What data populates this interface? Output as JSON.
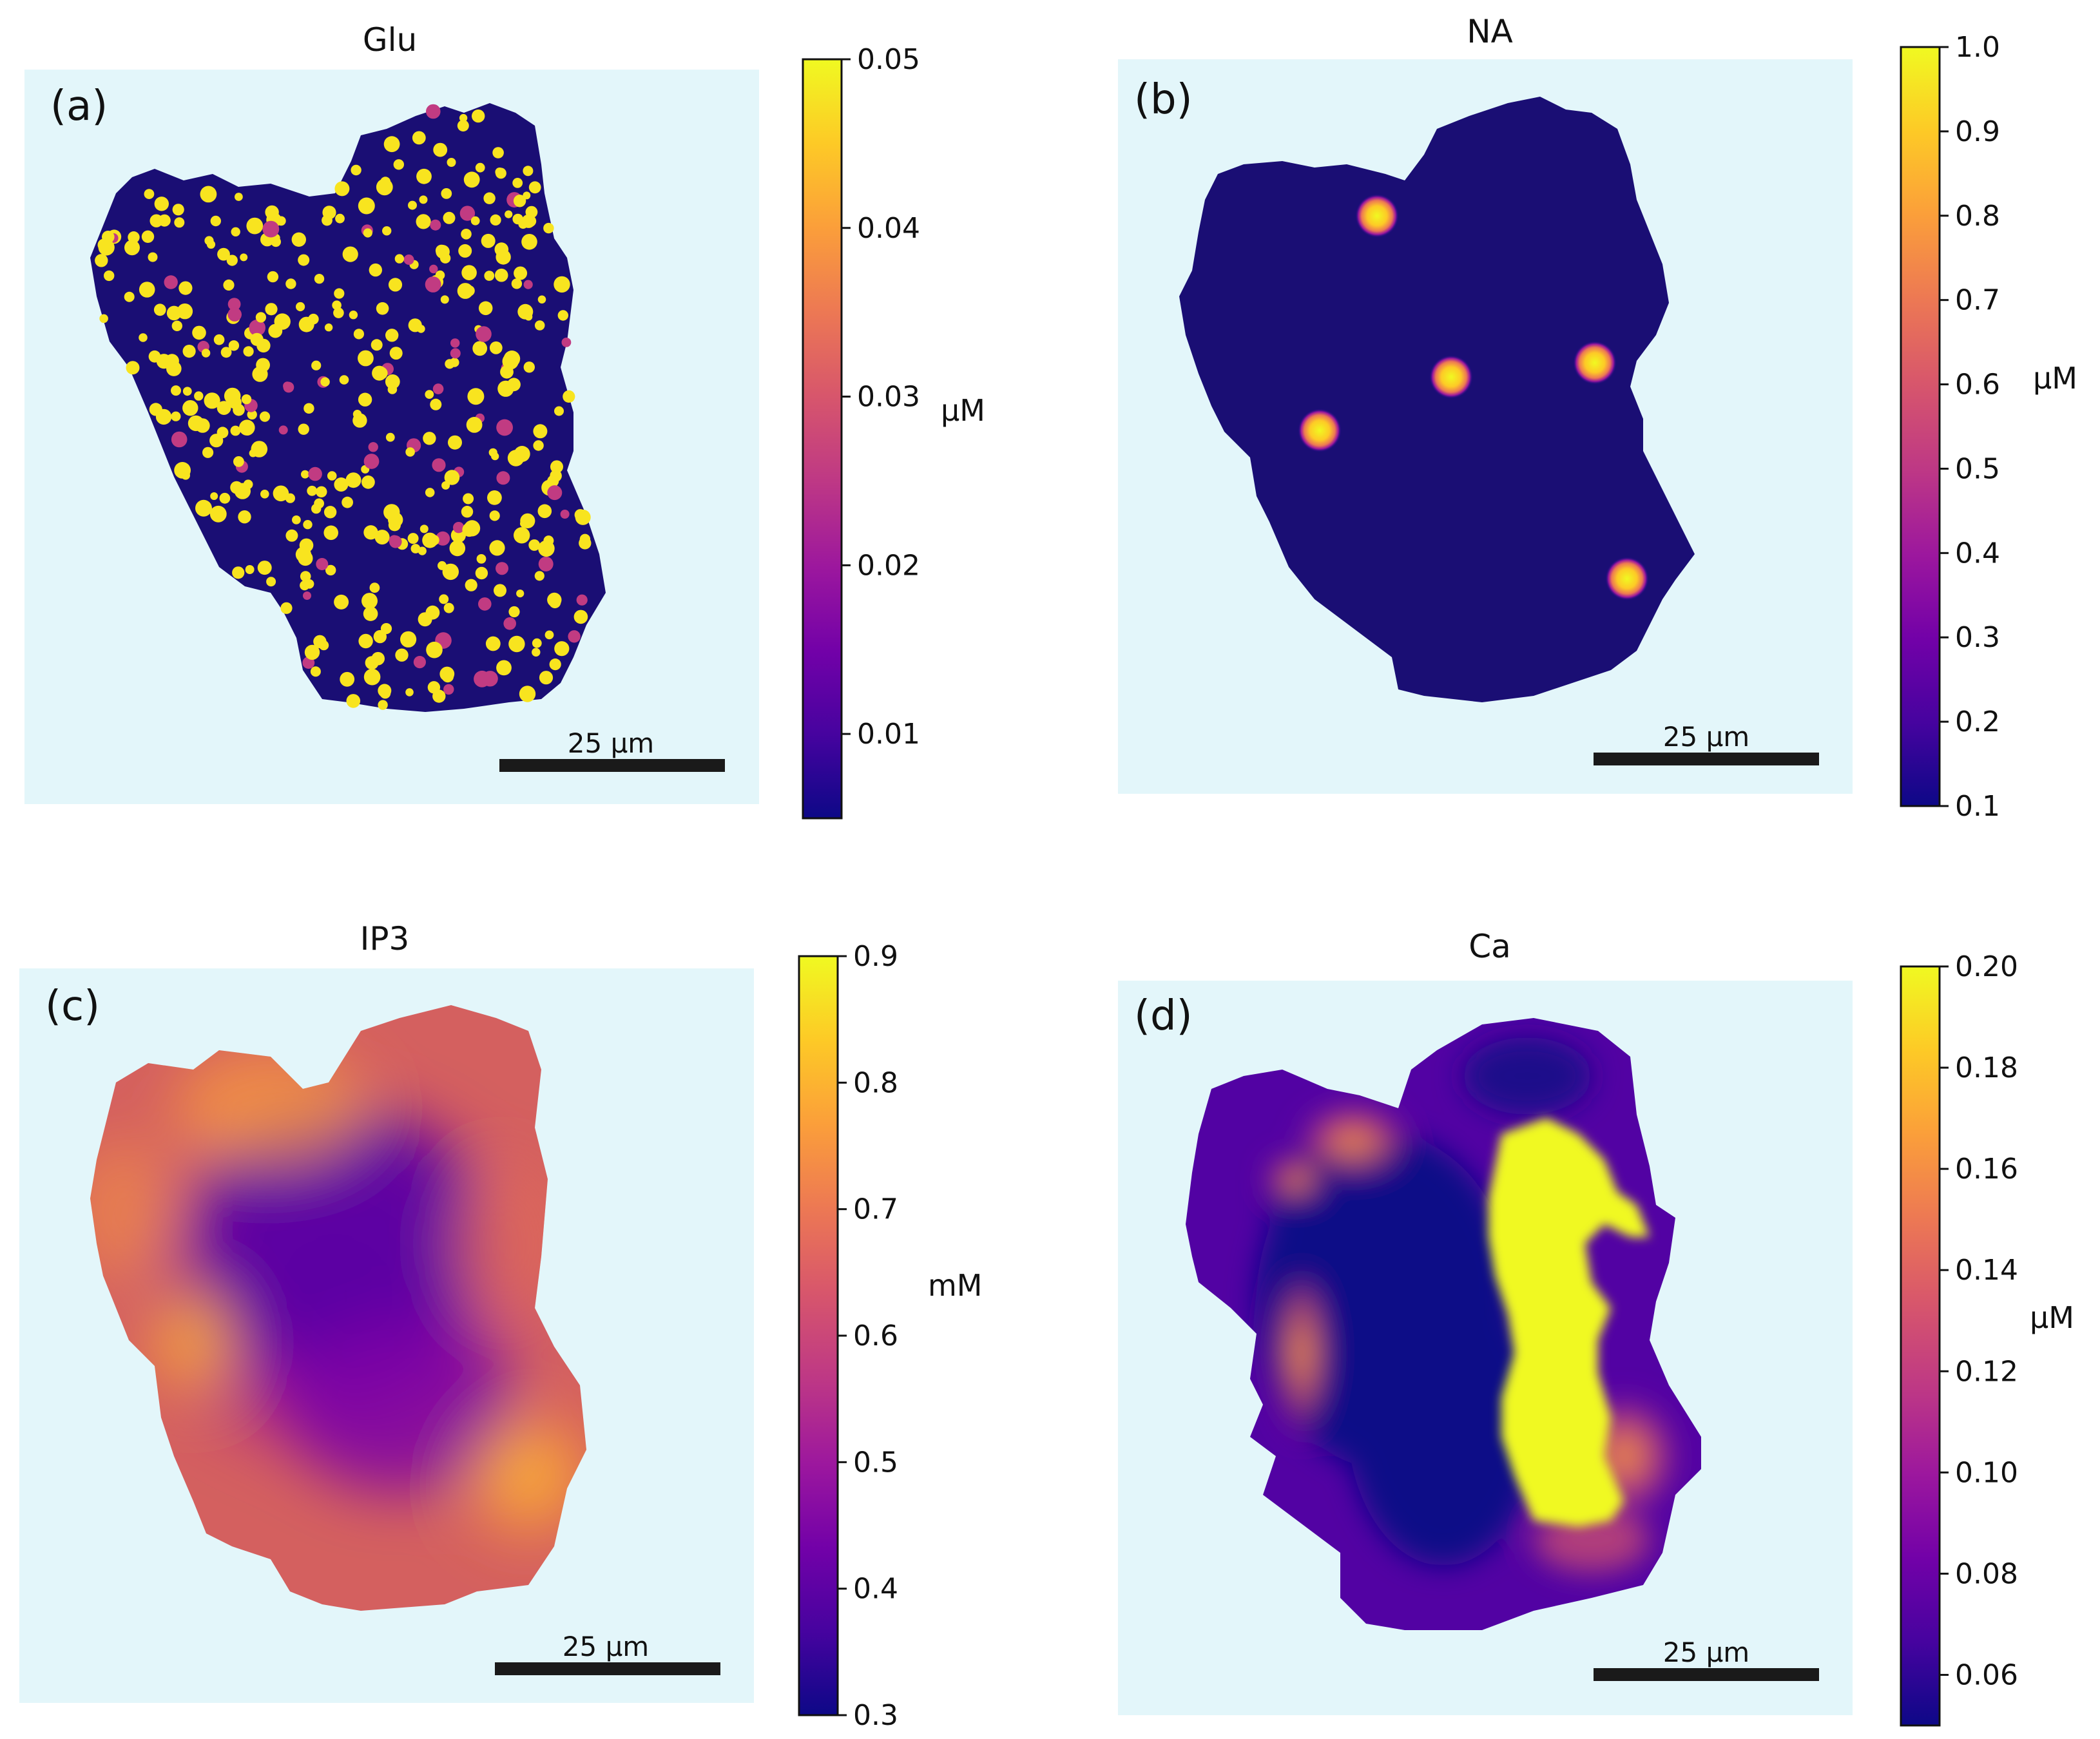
{
  "chart_data": [
    {
      "type": "heatmap",
      "panel_label": "(a)",
      "title": "Glu",
      "colorbar": {
        "label": "μM",
        "min": 0.005,
        "max": 0.05,
        "ticks": [
          0.01,
          0.02,
          0.03,
          0.04,
          0.05
        ],
        "tick_labels": [
          "0.01",
          "0.02",
          "0.03",
          "0.04",
          "0.05"
        ]
      },
      "scale_bar": {
        "label": "25 μm",
        "length_um": 25
      },
      "pattern": "many small bright puncta scattered over a dark cell"
    },
    {
      "type": "heatmap",
      "panel_label": "(b)",
      "title": "NA",
      "colorbar": {
        "label": "μM",
        "min": 0.1,
        "max": 1.0,
        "ticks": [
          0.1,
          0.2,
          0.3,
          0.4,
          0.5,
          0.6,
          0.7,
          0.8,
          0.9,
          1.0
        ],
        "tick_labels": [
          "0.1",
          "0.2",
          "0.3",
          "0.4",
          "0.5",
          "0.6",
          "0.7",
          "0.8",
          "0.9",
          "1.0"
        ]
      },
      "scale_bar": {
        "label": "25 μm",
        "length_um": 25
      },
      "pattern": "five isolated bright release sites on a dark cell"
    },
    {
      "type": "heatmap",
      "panel_label": "(c)",
      "title": "IP3",
      "colorbar": {
        "label": "mM",
        "min": 0.3,
        "max": 0.9,
        "ticks": [
          0.3,
          0.4,
          0.5,
          0.6,
          0.7,
          0.8,
          0.9
        ],
        "tick_labels": [
          "0.3",
          "0.4",
          "0.5",
          "0.6",
          "0.7",
          "0.8",
          "0.9"
        ]
      },
      "scale_bar": {
        "label": "25 μm",
        "length_um": 25
      },
      "pattern": "high concentration at the periphery, low in the center"
    },
    {
      "type": "heatmap",
      "panel_label": "(d)",
      "title": "Ca",
      "colorbar": {
        "label": "μM",
        "min": 0.05,
        "max": 0.2,
        "ticks": [
          0.06,
          0.08,
          0.1,
          0.12,
          0.14,
          0.16,
          0.18,
          0.2
        ],
        "tick_labels": [
          "0.06",
          "0.08",
          "0.10",
          "0.12",
          "0.14",
          "0.16",
          "0.18",
          "0.20"
        ]
      },
      "scale_bar": {
        "label": "25 μm",
        "length_um": 25
      },
      "pattern": "saturated band along the right side, low in the center"
    }
  ],
  "colors": {
    "background": "#e3f6fa",
    "scale_bar": "#1a1a1a",
    "colormap_plasma": [
      "#0d0887",
      "#46039f",
      "#7201a8",
      "#9c179e",
      "#bd3786",
      "#d8576b",
      "#ed7953",
      "#fb9f3a",
      "#fdca26",
      "#f0f921"
    ]
  }
}
